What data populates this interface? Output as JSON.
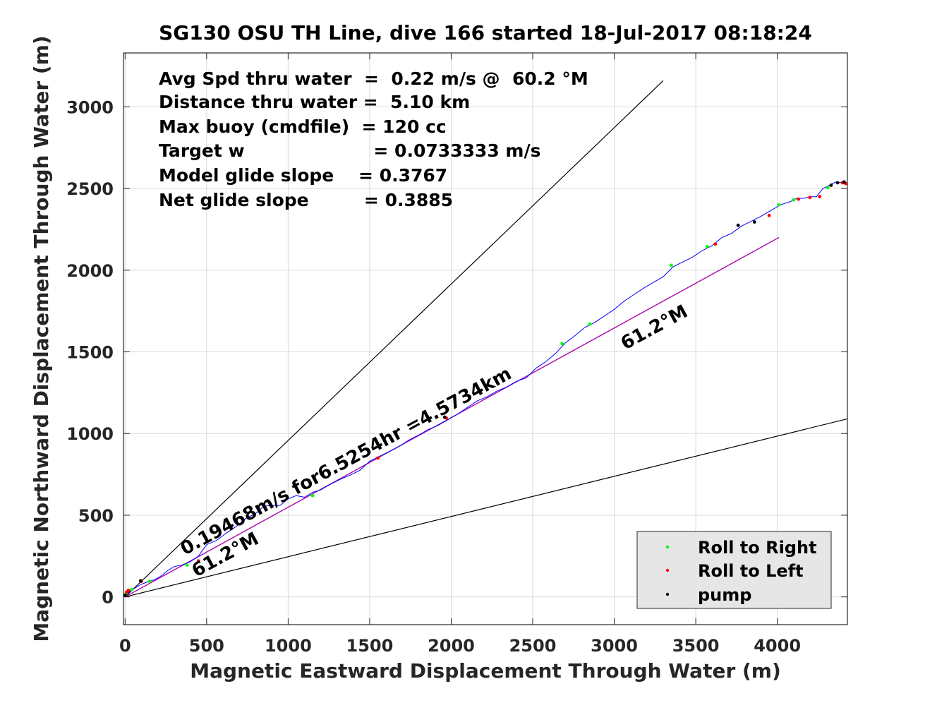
{
  "chart_data": {
    "type": "line",
    "title": "SG130 OSU TH Line, dive 166 started 18-Jul-2017 08:18:24",
    "xlabel": "Magnetic Eastward Displacement Through Water (m)",
    "ylabel": "Magnetic Northward Displacement Through Water (m)",
    "xlim": [
      -10,
      4430
    ],
    "ylim": [
      -170,
      3330
    ],
    "xticks": [
      0,
      500,
      1000,
      1500,
      2000,
      2500,
      3000,
      3500,
      4000
    ],
    "yticks": [
      0,
      500,
      1000,
      1500,
      2000,
      2500,
      3000
    ],
    "xtick_labels": [
      "0",
      "500",
      "1000",
      "1500",
      "2000",
      "2500",
      "3000",
      "3500",
      "4000"
    ],
    "ytick_labels": [
      "0",
      "500",
      "1000",
      "1500",
      "2000",
      "2500",
      "3000"
    ],
    "grid": true,
    "annotations": [
      "Avg Spd thru water  =  0.22 m/s @  60.2 °M",
      "Distance thru water =  5.10 km",
      "Max buoy (cmdfile)  = 120 cc",
      "Target w                     = 0.0733333 m/s",
      "Model glide slope    = 0.3767",
      "Net glide slope         = 0.3885"
    ],
    "rotated_labels": {
      "speed": "0.19468m/s for6.5254hr =4.5734km",
      "heading_upper": "61.2°M",
      "heading_lower": "61.2°M"
    },
    "reference_lines": [
      {
        "name": "glide cone upper",
        "x": [
          0,
          3300
        ],
        "y": [
          0,
          3160
        ],
        "color": "#000000"
      },
      {
        "name": "glide cone lower",
        "x": [
          0,
          4430
        ],
        "y": [
          0,
          1090
        ],
        "color": "#000000"
      },
      {
        "name": "heading 61.2°M",
        "x": [
          0,
          4010
        ],
        "y": [
          0,
          2200
        ],
        "color": "#000000"
      },
      {
        "name": "net displacement",
        "x": [
          0,
          4010
        ],
        "y": [
          0,
          2200
        ],
        "color": "#c000c0"
      }
    ],
    "track": {
      "color": "#0000ff",
      "x": [
        0,
        15,
        30,
        50,
        70,
        95,
        120,
        150,
        180,
        200,
        230,
        260,
        300,
        350,
        400,
        450,
        500,
        560,
        620,
        680,
        740,
        800,
        850,
        900,
        950,
        1000,
        1050,
        1100,
        1150,
        1200,
        1260,
        1320,
        1380,
        1440,
        1500,
        1560,
        1620,
        1680,
        1740,
        1800,
        1860,
        1920,
        1980,
        2040,
        2100,
        2160,
        2220,
        2280,
        2340,
        2400,
        2460,
        2520,
        2580,
        2640,
        2700,
        2760,
        2820,
        2880,
        2940,
        3000,
        3060,
        3120,
        3180,
        3240,
        3300,
        3360,
        3420,
        3480,
        3540,
        3600,
        3660,
        3720,
        3780,
        3840,
        3900,
        3960,
        4020,
        4080,
        4120,
        4160,
        4200,
        4240,
        4280,
        4320,
        4360,
        4400,
        4430
      ],
      "y": [
        0,
        20,
        35,
        48,
        60,
        75,
        85,
        95,
        105,
        115,
        135,
        160,
        185,
        195,
        215,
        250,
        320,
        345,
        390,
        430,
        480,
        510,
        555,
        560,
        560,
        600,
        620,
        610,
        640,
        655,
        690,
        720,
        745,
        775,
        830,
        860,
        890,
        920,
        960,
        990,
        1025,
        1050,
        1085,
        1120,
        1160,
        1200,
        1225,
        1260,
        1285,
        1320,
        1340,
        1400,
        1440,
        1490,
        1555,
        1600,
        1650,
        1680,
        1720,
        1760,
        1810,
        1850,
        1890,
        1925,
        1960,
        2020,
        2050,
        2080,
        2120,
        2150,
        2200,
        2225,
        2270,
        2300,
        2330,
        2365,
        2400,
        2420,
        2440,
        2440,
        2450,
        2450,
        2500,
        2520,
        2540,
        2535,
        2530
      ]
    },
    "markers": [
      {
        "name": "Roll to Right",
        "color": "#00ff00",
        "points": [
          [
            5,
            20
          ],
          [
            40,
            45
          ],
          [
            150,
            95
          ],
          [
            380,
            195
          ],
          [
            1150,
            620
          ],
          [
            2680,
            1550
          ],
          [
            2850,
            1670
          ],
          [
            3350,
            2030
          ],
          [
            3570,
            2145
          ],
          [
            4010,
            2400
          ],
          [
            4100,
            2430
          ],
          [
            4310,
            2505
          ]
        ]
      },
      {
        "name": "Roll to Left",
        "color": "#ff0000",
        "points": [
          [
            10,
            30
          ],
          [
            20,
            40
          ],
          [
            100,
            95
          ],
          [
            450,
            220
          ],
          [
            1550,
            850
          ],
          [
            1970,
            1095
          ],
          [
            3620,
            2160
          ],
          [
            3950,
            2335
          ],
          [
            4130,
            2435
          ],
          [
            4200,
            2445
          ],
          [
            4260,
            2450
          ],
          [
            4400,
            2535
          ],
          [
            4420,
            2530
          ]
        ]
      },
      {
        "name": "pump",
        "color": "#000000",
        "points": [
          [
            0,
            10
          ],
          [
            95,
            98
          ],
          [
            1960,
            1100
          ],
          [
            3760,
            2275
          ],
          [
            3860,
            2295
          ],
          [
            4330,
            2520
          ],
          [
            4370,
            2535
          ],
          [
            4410,
            2540
          ]
        ]
      }
    ],
    "legend": {
      "location": "bottom-right",
      "entries": [
        "Roll to Right",
        "Roll to Left",
        "pump"
      ],
      "background": "#e6e6e6"
    }
  }
}
